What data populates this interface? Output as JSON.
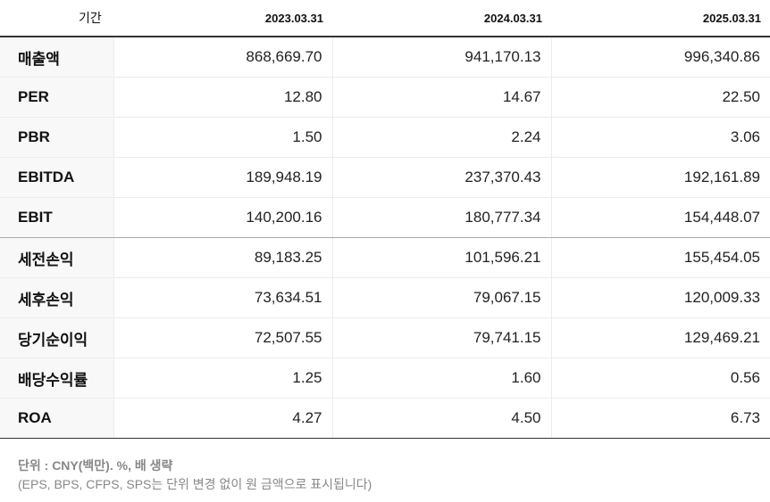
{
  "header": {
    "period_label": "기간",
    "columns": [
      "2023.03.31",
      "2024.03.31",
      "2025.03.31"
    ]
  },
  "rows": [
    {
      "label": "매출액",
      "values": [
        "868,669.70",
        "941,170.13",
        "996,340.86"
      ]
    },
    {
      "label": "PER",
      "values": [
        "12.80",
        "14.67",
        "22.50"
      ]
    },
    {
      "label": "PBR",
      "values": [
        "1.50",
        "2.24",
        "3.06"
      ]
    },
    {
      "label": "EBITDA",
      "values": [
        "189,948.19",
        "237,370.43",
        "192,161.89"
      ]
    },
    {
      "label": "EBIT",
      "values": [
        "140,200.16",
        "180,777.34",
        "154,448.07"
      ]
    },
    {
      "label": "세전손익",
      "values": [
        "89,183.25",
        "101,596.21",
        "155,454.05"
      ]
    },
    {
      "label": "세후손익",
      "values": [
        "73,634.51",
        "79,067.15",
        "120,009.33"
      ]
    },
    {
      "label": "당기순이익",
      "values": [
        "72,507.55",
        "79,741.15",
        "129,469.21"
      ]
    },
    {
      "label": "배당수익률",
      "values": [
        "1.25",
        "1.60",
        "0.56"
      ]
    },
    {
      "label": "ROA",
      "values": [
        "4.27",
        "4.50",
        "6.73"
      ]
    }
  ],
  "footnote": {
    "unit_line": "단위 : CNY(백만). %, 배 생략",
    "note_line": "(EPS, BPS, CFPS, SPS는 단위 변경 없이 원 금액으로 표시됩니다)"
  }
}
